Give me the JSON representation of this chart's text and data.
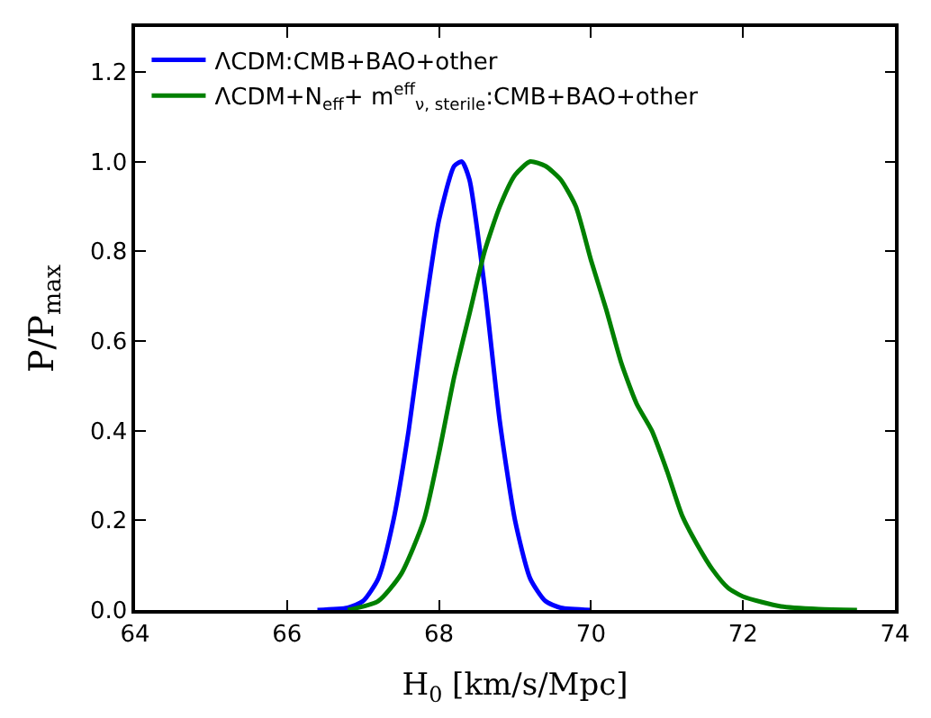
{
  "chart_data": {
    "type": "line",
    "xlabel": "H$_{0}$ [km/s/Mpc]",
    "ylabel": "P/P$_{max}$",
    "xlim": [
      64,
      74
    ],
    "xticks": [
      64,
      66,
      68,
      70,
      72,
      74
    ],
    "ylim": [
      0,
      1.3
    ],
    "yticks": [
      {
        "value": 0,
        "label": "0.0"
      },
      0.2,
      0.4,
      0.6,
      0.8,
      {
        "value": 1,
        "label": "1.0"
      },
      1.2
    ],
    "legend": "top left",
    "marker": "none",
    "line_style": "solid",
    "series": [
      {
        "name": "ΛCDM:CMB+BAO+other",
        "color": "#0000ff",
        "x": [
          66.4,
          66.8,
          67.0,
          67.2,
          67.4,
          67.6,
          67.8,
          68.0,
          68.2,
          68.3,
          68.4,
          68.6,
          68.8,
          69.0,
          69.2,
          69.4,
          69.6,
          70.0
        ],
        "values": [
          0,
          0.005,
          0.02,
          0.07,
          0.2,
          0.4,
          0.65,
          0.87,
          0.99,
          1.0,
          0.96,
          0.72,
          0.42,
          0.2,
          0.07,
          0.02,
          0.005,
          0
        ]
      },
      {
        "name": "ΛCDM+N$_{eff}$+ m$^{eff}$$_{ν, sterile}$:CMB+BAO+other",
        "color": "#008000",
        "x": [
          66.8,
          67.2,
          67.5,
          67.8,
          68.0,
          68.2,
          68.4,
          68.6,
          68.8,
          69.0,
          69.2,
          69.4,
          69.6,
          69.8,
          70.0,
          70.2,
          70.4,
          70.6,
          70.8,
          71.0,
          71.2,
          71.4,
          71.6,
          71.8,
          72.0,
          72.5,
          73.0,
          73.5
        ],
        "values": [
          0,
          0.02,
          0.08,
          0.2,
          0.35,
          0.52,
          0.66,
          0.8,
          0.9,
          0.97,
          1.0,
          0.99,
          0.96,
          0.9,
          0.78,
          0.67,
          0.55,
          0.46,
          0.4,
          0.31,
          0.21,
          0.145,
          0.09,
          0.05,
          0.03,
          0.008,
          0.002,
          0
        ]
      }
    ]
  }
}
